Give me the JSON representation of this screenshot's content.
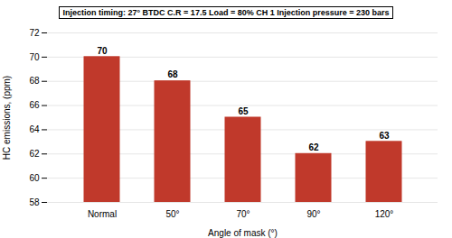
{
  "chart_data": {
    "type": "bar",
    "title": "Injection timing: 27° BTDC  C.R = 17.5   Load = 80%  CH 1  Injection pressure = 230 bars",
    "xlabel": "Angle of mask (°)",
    "ylabel": "HC emissions, (ppm)",
    "categories": [
      "Normal",
      "50°",
      "70°",
      "90°",
      "120°"
    ],
    "values": [
      70,
      68,
      65,
      62,
      63
    ],
    "color": "#C0392B",
    "ylim": [
      58,
      72
    ],
    "yticks": [
      58,
      60,
      62,
      64,
      66,
      68,
      70,
      72
    ],
    "grid": true,
    "data_labels": true
  }
}
